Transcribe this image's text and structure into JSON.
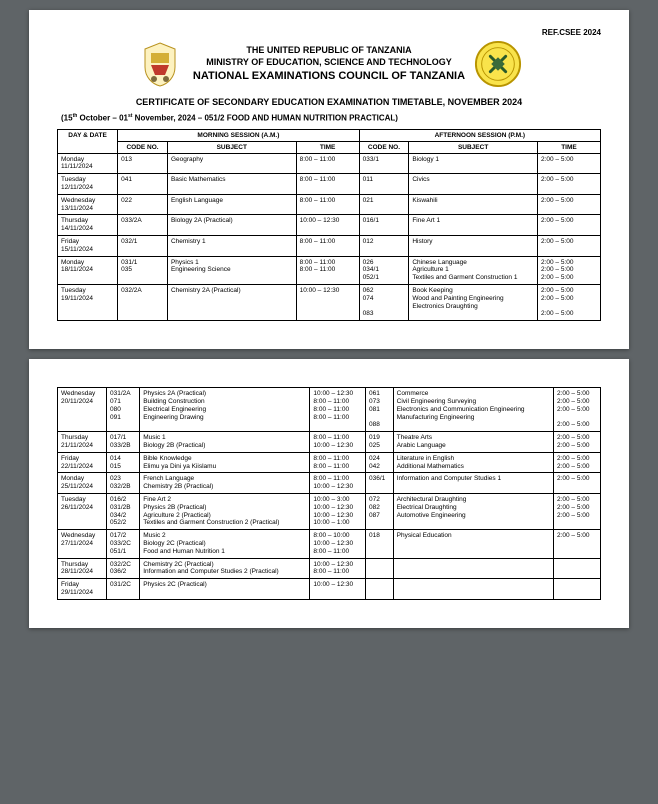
{
  "ref": "REF.CSEE 2024",
  "header": {
    "line1": "THE UNITED REPUBLIC OF TANZANIA",
    "line2": "MINISTRY OF EDUCATION, SCIENCE AND TECHNOLOGY",
    "line3": "NATIONAL EXAMINATIONS COUNCIL OF TANZANIA"
  },
  "cert_title": "CERTIFICATE OF SECONDARY EDUCATION EXAMINATION TIMETABLE, NOVEMBER 2024",
  "dates_prefix": "(15",
  "dates_sup1": "th",
  "dates_mid": " October – 01",
  "dates_sup2": "st",
  "dates_suffix": " November, 2024 – 051/2 FOOD AND HUMAN NUTRITION PRACTICAL)",
  "table_headers": {
    "day": "DAY & DATE",
    "morning": "MORNING SESSION  (A.M.)",
    "afternoon": "AFTERNOON SESSION  (P.M.)",
    "code": "CODE NO.",
    "subject": "SUBJECT",
    "time": "TIME"
  },
  "rows1": [
    {
      "day": "Monday\n11/11/2024",
      "mc": "013",
      "ms": "Geography",
      "mt": "8:00 – 11:00",
      "ac": "033/1",
      "as": "Biology 1",
      "at": "2:00 – 5:00"
    },
    {
      "day": "Tuesday\n12/11/2024",
      "mc": "041",
      "ms": "Basic Mathematics",
      "mt": "8:00 – 11:00",
      "ac": "011",
      "as": "Civics",
      "at": "2:00 – 5:00"
    },
    {
      "day": "Wednesday\n13/11/2024",
      "mc": "022",
      "ms": "English Language",
      "mt": "8:00 – 11:00",
      "ac": "021",
      "as": "Kiswahili",
      "at": "2:00 – 5:00"
    },
    {
      "day": "Thursday\n14/11/2024",
      "mc": "033/2A",
      "ms": "Biology 2A (Practical)",
      "mt": "10:00 – 12:30",
      "ac": "016/1",
      "as": "Fine Art 1",
      "at": "2:00 – 5:00"
    },
    {
      "day": "Friday\n15/11/2024",
      "mc": "032/1",
      "ms": "Chemistry 1",
      "mt": "8:00 – 11:00",
      "ac": "012",
      "as": "History",
      "at": "2:00 – 5:00"
    },
    {
      "day": "Monday\n18/11/2024",
      "mc": "031/1\n035",
      "ms": "Physics 1\nEngineering Science",
      "mt": "8:00 – 11:00\n8:00 – 11:00",
      "ac": "026\n034/1\n052/1",
      "as": "Chinese Language\nAgriculture 1\nTextiles and Garment Construction 1",
      "at": "2:00 – 5:00\n2:00 – 5:00\n2:00 – 5:00"
    },
    {
      "day": "Tuesday\n19/11/2024",
      "mc": "032/2A",
      "ms": "Chemistry 2A (Practical)",
      "mt": "10:00 – 12:30",
      "ac": "062\n074\n\n083",
      "as": "Book Keeping\nWood and Painting Engineering\nElectronics Draughting",
      "at": "2:00 – 5:00\n2:00 – 5:00\n\n2:00 – 5:00"
    }
  ],
  "rows2": [
    {
      "day": "Wednesday\n20/11/2024",
      "mc": "031/2A\n071\n080\n091",
      "ms": "Physics 2A (Practical)\nBuilding Construction\nElectrical Engineering\nEngineering Drawing",
      "mt": "10:00 – 12:30\n8:00 – 11:00\n8:00 – 11:00\n8:00 – 11:00",
      "ac": "061\n073\n081\n\n088",
      "as": "Commerce\nCivil Engineering Surveying\nElectronics and Communication Engineering\nManufacturing Engineering",
      "at": "2:00 – 5:00\n2:00 – 5:00\n2:00 – 5:00\n\n2:00 – 5:00"
    },
    {
      "day": "Thursday\n21/11/2024",
      "mc": "017/1\n033/2B",
      "ms": "Music 1\nBiology 2B (Practical)",
      "mt": "8:00 – 11:00\n10:00 – 12:30",
      "ac": "019\n025",
      "as": "Theatre Arts\nArabic Language",
      "at": "2:00 – 5:00\n2:00 – 5:00"
    },
    {
      "day": "Friday\n22/11/2024",
      "mc": "014\n015",
      "ms": "Bible Knowledge\nElimu ya Dini ya Kiislamu",
      "mt": "8:00 – 11:00\n8:00 – 11:00",
      "ac": "024\n042",
      "as": "Literature in English\nAdditional Mathematics",
      "at": "2:00 – 5:00\n2:00 – 5:00"
    },
    {
      "day": "Monday\n25/11/2024",
      "mc": "023\n032/2B",
      "ms": "French Language\nChemistry 2B (Practical)",
      "mt": "8:00 – 11:00\n10:00 – 12:30",
      "ac": "036/1",
      "as": "Information and Computer Studies 1",
      "at": "2:00 – 5:00"
    },
    {
      "day": "Tuesday\n26/11/2024",
      "mc": "016/2\n031/2B\n034/2\n052/2",
      "ms": "Fine Art 2\nPhysics 2B (Practical)\nAgriculture 2 (Practical)\nTextiles and Garment Construction 2 (Practical)",
      "mt": "10:00 – 3:00\n10:00 – 12:30\n10:00 – 12:30\n10:00 – 1:00",
      "ac": "072\n082\n087",
      "as": "Architectural Draughting\nElectrical Draughting\nAutomotive Engineering",
      "at": "2:00 – 5:00\n2:00 – 5:00\n2:00 – 5:00"
    },
    {
      "day": "Wednesday\n27/11/2024",
      "mc": "017/2\n033/2C\n051/1",
      "ms": "Music 2\nBiology 2C (Practical)\nFood and Human Nutrition 1",
      "mt": "8:00 – 10:00\n10:00 – 12:30\n8:00 – 11:00",
      "ac": "018",
      "as": "Physical Education",
      "at": "2:00 – 5:00"
    },
    {
      "day": "Thursday\n28/11/2024",
      "mc": "032/2C\n036/2",
      "ms": "Chemistry 2C (Practical)\nInformation and Computer Studies 2 (Practical)",
      "mt": "10:00 – 12:30\n8:00 – 11:00",
      "ac": "",
      "as": "",
      "at": ""
    },
    {
      "day": "Friday\n29/11/2024",
      "mc": "031/2C",
      "ms": "Physics 2C (Practical)",
      "mt": "10:00 – 12:30",
      "ac": "",
      "as": "",
      "at": ""
    }
  ]
}
